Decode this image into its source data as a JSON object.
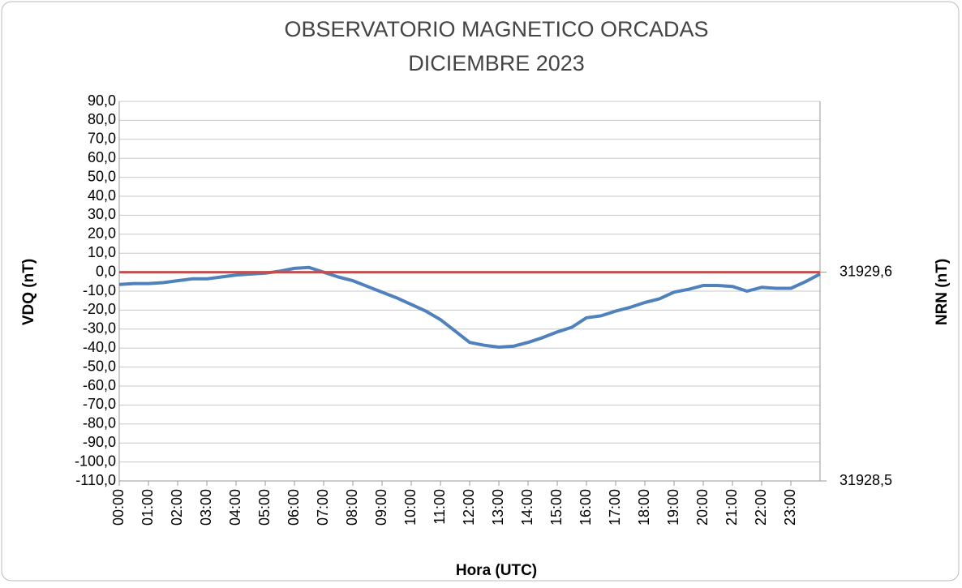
{
  "chart_data": {
    "type": "line",
    "title": "OBSERVATORIO MAGNETICO ORCADAS",
    "subtitle": "DICIEMBRE 2023",
    "x_label": "Hora (UTC)",
    "y_label": "VDQ (nT)",
    "y2_label": "NRN (nT)",
    "grid": true,
    "xlim": [
      0,
      24
    ],
    "xticks": [
      {
        "value": 0,
        "label": "00:00"
      },
      {
        "value": 1,
        "label": "01:00"
      },
      {
        "value": 2,
        "label": "02:00"
      },
      {
        "value": 3,
        "label": "03:00"
      },
      {
        "value": 4,
        "label": "04:00"
      },
      {
        "value": 5,
        "label": "05:00"
      },
      {
        "value": 6,
        "label": "06:00"
      },
      {
        "value": 7,
        "label": "07:00"
      },
      {
        "value": 8,
        "label": "08:00"
      },
      {
        "value": 9,
        "label": "09:00"
      },
      {
        "value": 10,
        "label": "10:00"
      },
      {
        "value": 11,
        "label": "11:00"
      },
      {
        "value": 12,
        "label": "12:00"
      },
      {
        "value": 13,
        "label": "13:00"
      },
      {
        "value": 14,
        "label": "14:00"
      },
      {
        "value": 15,
        "label": "15:00"
      },
      {
        "value": 16,
        "label": "16:00"
      },
      {
        "value": 17,
        "label": "17:00"
      },
      {
        "value": 18,
        "label": "18:00"
      },
      {
        "value": 19,
        "label": "19:00"
      },
      {
        "value": 20,
        "label": "20:00"
      },
      {
        "value": 21,
        "label": "21:00"
      },
      {
        "value": 22,
        "label": "22:00"
      },
      {
        "value": 23,
        "label": "23:00"
      }
    ],
    "ylim": [
      -110,
      90
    ],
    "yticks": [
      {
        "value": 90,
        "label": "90,0"
      },
      {
        "value": 80,
        "label": "80,0"
      },
      {
        "value": 70,
        "label": "70,0"
      },
      {
        "value": 60,
        "label": "60,0"
      },
      {
        "value": 50,
        "label": "50,0"
      },
      {
        "value": 40,
        "label": "40,0"
      },
      {
        "value": 30,
        "label": "30,0"
      },
      {
        "value": 20,
        "label": "20,0"
      },
      {
        "value": 10,
        "label": "10,0"
      },
      {
        "value": 0,
        "label": "0,0"
      },
      {
        "value": -10,
        "label": "-10,0"
      },
      {
        "value": -20,
        "label": "-20,0"
      },
      {
        "value": -30,
        "label": "-30,0"
      },
      {
        "value": -40,
        "label": "-40,0"
      },
      {
        "value": -50,
        "label": "-50,0"
      },
      {
        "value": -60,
        "label": "-60,0"
      },
      {
        "value": -70,
        "label": "-70,0"
      },
      {
        "value": -80,
        "label": "-80,0"
      },
      {
        "value": -90,
        "label": "-90,0"
      },
      {
        "value": -100,
        "label": "-100,0"
      },
      {
        "value": -110,
        "label": "-110,0"
      }
    ],
    "y2lim": [
      31928.5,
      31930.5
    ],
    "y2ticks": [
      {
        "value": 31929.6,
        "label": "31929,6"
      },
      {
        "value": 31928.5,
        "label": "31928,5"
      }
    ],
    "series": [
      {
        "color": "#4f81bd",
        "x": [
          0,
          0.5,
          1,
          1.5,
          2,
          2.5,
          3,
          3.5,
          4,
          4.5,
          5,
          5.5,
          6,
          6.5,
          7,
          7.5,
          8,
          8.5,
          9,
          9.5,
          10,
          10.5,
          11,
          11.5,
          12,
          12.5,
          13,
          13.5,
          14,
          14.5,
          15,
          15.5,
          16,
          16.5,
          17,
          17.5,
          18,
          18.5,
          19,
          19.5,
          20,
          20.5,
          21,
          21.5,
          22,
          22.5,
          23,
          23.5,
          24
        ],
        "values": [
          -6.5,
          -6,
          -6,
          -5.5,
          -4.5,
          -3.5,
          -3.5,
          -2.5,
          -1.5,
          -1,
          -0.5,
          0.5,
          2,
          2.5,
          0,
          -2.5,
          -4.5,
          -7.5,
          -10.5,
          -13.5,
          -17,
          -20.5,
          -25,
          -31,
          -37,
          -38.5,
          -39.5,
          -39,
          -37,
          -34.5,
          -31.5,
          -29,
          -24,
          -23,
          -20.5,
          -18.5,
          -16,
          -14,
          -10.5,
          -9,
          -7,
          -7,
          -7.5,
          -10,
          -8,
          -8.5,
          -8.5,
          -5,
          -1
        ]
      },
      {
        "color": "#c0504d",
        "axis": "y2",
        "x": [
          0,
          24
        ],
        "values": [
          31929.6,
          31929.6
        ]
      }
    ]
  }
}
